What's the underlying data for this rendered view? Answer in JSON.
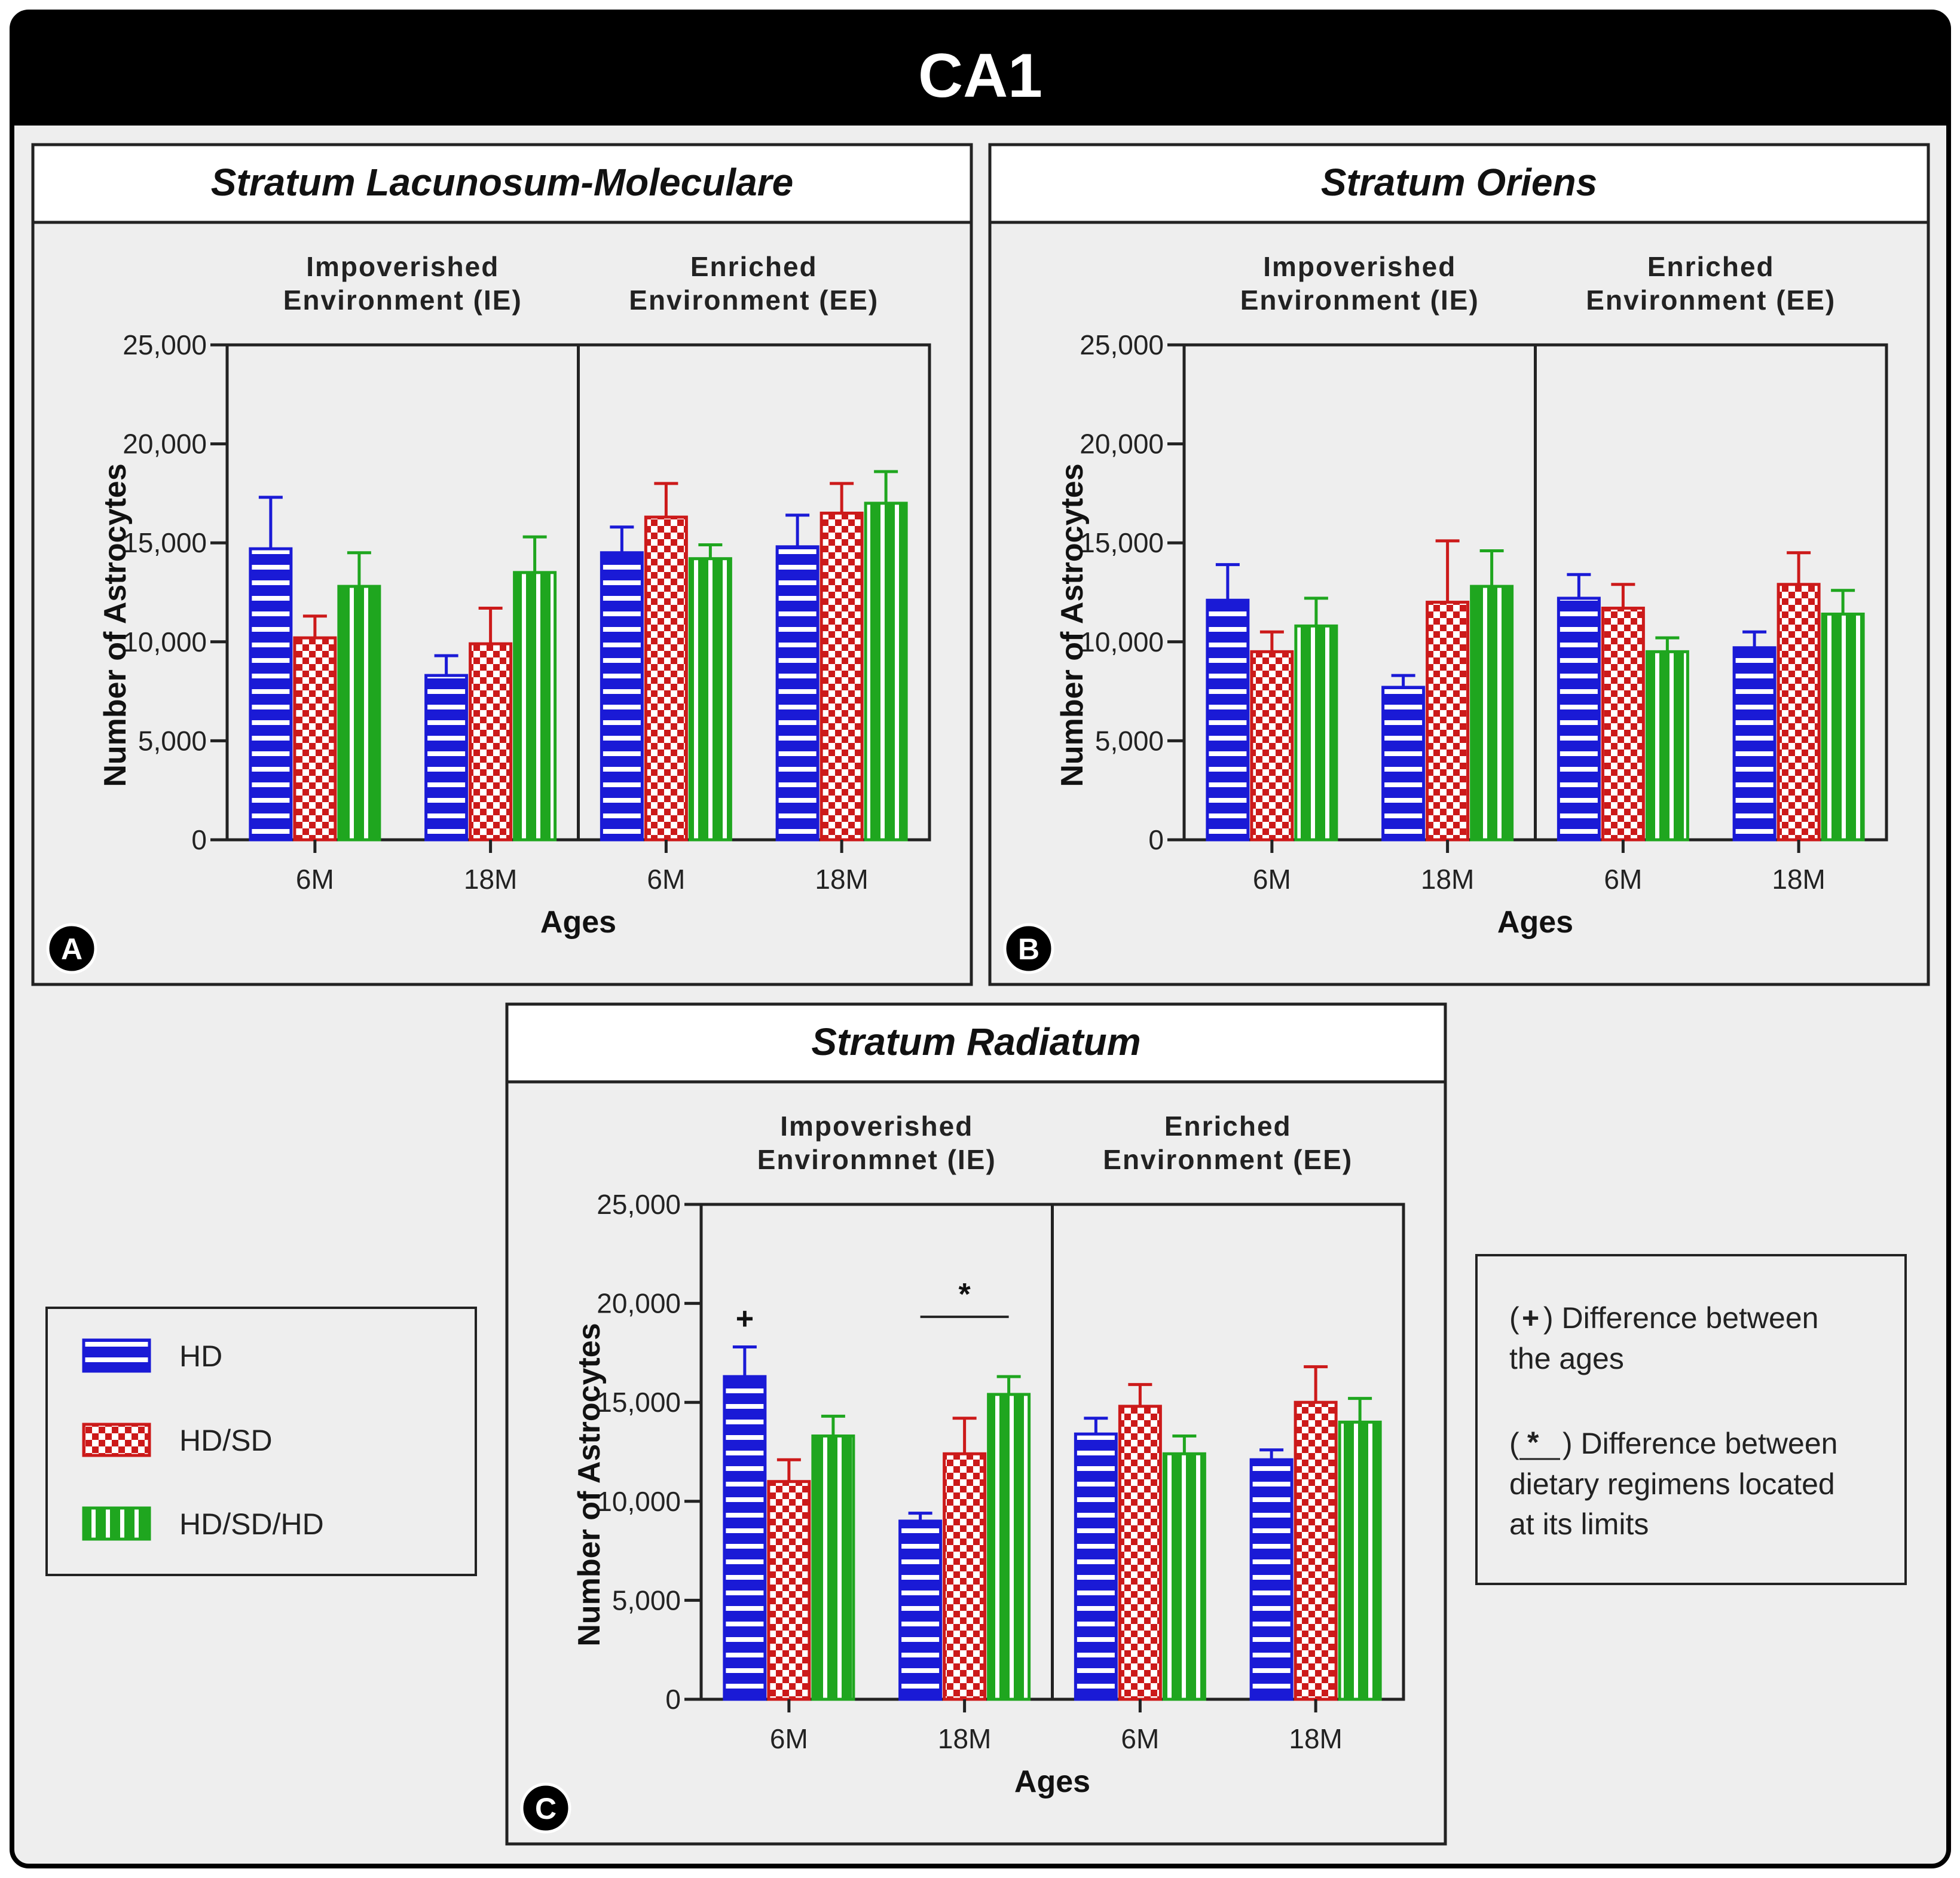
{
  "figure": {
    "title": "CA1",
    "colors": {
      "hd": "#1a1ad6",
      "hdsd": "#cc1a1a",
      "hdsdhd": "#1fa61f",
      "panel_bg": "#eeeeee",
      "header_bg": "#000000"
    },
    "legend": [
      {
        "key": "hd",
        "label": "HD"
      },
      {
        "key": "hdsd",
        "label": "HD/SD"
      },
      {
        "key": "hdsdhd",
        "label": "HD/SD/HD"
      }
    ],
    "notes": {
      "plus_symbol": "+",
      "plus_line1": ") Difference between",
      "plus_line2": "the ages",
      "star_symbol": "*",
      "star_line1": ") Difference between",
      "star_line2": "dietary regimens located",
      "star_line3": "at its limits"
    }
  },
  "chart_data": [
    {
      "panel": "A",
      "type": "bar",
      "title": "Stratum Lacunosum-Moleculare",
      "group_labels": [
        [
          "Impoverished",
          "Environment (IE)"
        ],
        [
          "Enriched",
          "Environment (EE)"
        ]
      ],
      "categories": [
        "6M",
        "18M",
        "6M",
        "18M"
      ],
      "xlabel": "Ages",
      "ylabel": "Number of Astrocytes",
      "ylim": [
        0,
        25000
      ],
      "yticks": [
        "0",
        "5,000",
        "10,000",
        "15,000",
        "20,000",
        "25,000"
      ],
      "series": [
        {
          "name": "HD",
          "values": [
            14700,
            8300,
            14500,
            14800
          ],
          "errors": [
            2600,
            1000,
            1300,
            1600
          ]
        },
        {
          "name": "HD/SD",
          "values": [
            10200,
            9900,
            16300,
            16500
          ],
          "errors": [
            1100,
            1800,
            1700,
            1500
          ]
        },
        {
          "name": "HD/SD/HD",
          "values": [
            12800,
            13500,
            14200,
            17000
          ],
          "errors": [
            1700,
            1800,
            700,
            1600
          ]
        }
      ],
      "annotations": []
    },
    {
      "panel": "B",
      "type": "bar",
      "title": "Stratum Oriens",
      "group_labels": [
        [
          "Impoverished",
          "Environment (IE)"
        ],
        [
          "Enriched",
          "Environment (EE)"
        ]
      ],
      "categories": [
        "6M",
        "18M",
        "6M",
        "18M"
      ],
      "xlabel": "Ages",
      "ylabel": "Number of Astrocytes",
      "ylim": [
        0,
        25000
      ],
      "yticks": [
        "0",
        "5,000",
        "10,000",
        "15,000",
        "20,000",
        "25,000"
      ],
      "series": [
        {
          "name": "HD",
          "values": [
            12100,
            7700,
            12200,
            9700
          ],
          "errors": [
            1800,
            600,
            1200,
            800
          ]
        },
        {
          "name": "HD/SD",
          "values": [
            9500,
            12000,
            11700,
            12900
          ],
          "errors": [
            1000,
            3100,
            1200,
            1600
          ]
        },
        {
          "name": "HD/SD/HD",
          "values": [
            10800,
            12800,
            9500,
            11400
          ],
          "errors": [
            1400,
            1800,
            700,
            1200
          ]
        }
      ],
      "annotations": []
    },
    {
      "panel": "C",
      "type": "bar",
      "title": "Stratum Radiatum",
      "group_labels": [
        [
          "Impoverished",
          "Environmnet (IE)"
        ],
        [
          "Enriched",
          "Environment (EE)"
        ]
      ],
      "categories": [
        "6M",
        "18M",
        "6M",
        "18M"
      ],
      "xlabel": "Ages",
      "ylabel": "Number of Astrocytes",
      "ylim": [
        0,
        25000
      ],
      "yticks": [
        "0",
        "5,000",
        "10,000",
        "15,000",
        "20,000",
        "25,000"
      ],
      "series": [
        {
          "name": "HD",
          "values": [
            16300,
            9000,
            13400,
            12100
          ],
          "errors": [
            1500,
            400,
            800,
            500
          ]
        },
        {
          "name": "HD/SD",
          "values": [
            11000,
            12400,
            14800,
            15000
          ],
          "errors": [
            1100,
            1800,
            1100,
            1800
          ]
        },
        {
          "name": "HD/SD/HD",
          "values": [
            13300,
            15400,
            12400,
            14000
          ],
          "errors": [
            1000,
            900,
            900,
            1200
          ]
        }
      ],
      "annotations": [
        {
          "symbol": "+",
          "category": 0,
          "series": 0
        },
        {
          "symbol": "*",
          "category": 1,
          "span": [
            0,
            2
          ]
        }
      ]
    }
  ]
}
